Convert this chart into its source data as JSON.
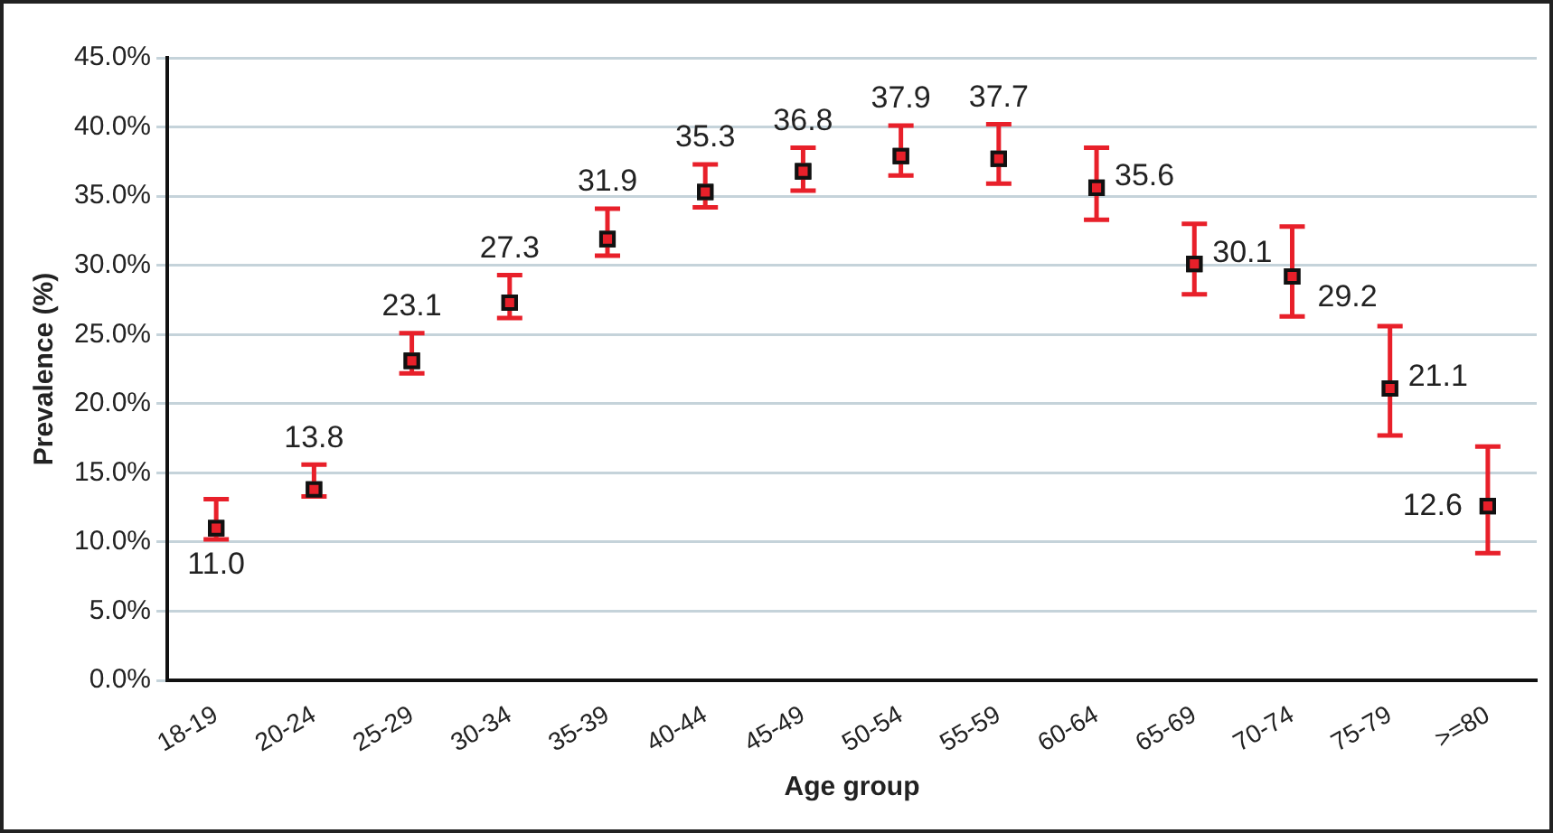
{
  "chart_data": {
    "type": "scatter",
    "xlabel": "Age group",
    "ylabel": "Prevalence (%)",
    "categories": [
      "18-19",
      "20-24",
      "25-29",
      "30-34",
      "35-39",
      "40-44",
      "45-49",
      "50-54",
      "55-59",
      "60-64",
      "65-69",
      "70-74",
      "75-79",
      ">=80"
    ],
    "series": [
      {
        "color": "#e8202a",
        "values": [
          11.0,
          13.8,
          23.1,
          27.3,
          31.9,
          35.3,
          36.8,
          37.9,
          37.7,
          35.6,
          30.1,
          29.2,
          21.1,
          12.6
        ],
        "value_labels": [
          "11.0",
          "13.8",
          "23.1",
          "27.3",
          "31.9",
          "35.3",
          "36.8",
          "37.9",
          "37.7",
          "35.6",
          "30.1",
          "29.2",
          "21.1",
          "12.6"
        ],
        "errors": [
          [
            10.2,
            13.1
          ],
          [
            13.3,
            15.6
          ],
          [
            22.2,
            25.1
          ],
          [
            26.2,
            29.3
          ],
          [
            30.7,
            34.1
          ],
          [
            34.2,
            37.3
          ],
          [
            35.4,
            38.5
          ],
          [
            36.5,
            40.1
          ],
          [
            35.9,
            40.2
          ],
          [
            33.3,
            38.5
          ],
          [
            27.9,
            33.0
          ],
          [
            26.3,
            32.8
          ],
          [
            17.7,
            25.6
          ],
          [
            9.2,
            16.9
          ]
        ]
      }
    ],
    "ylim": [
      0,
      45
    ],
    "yticks": [
      {
        "value": 0,
        "label": "0.0%"
      },
      {
        "value": 5,
        "label": "5.0%"
      },
      {
        "value": 10,
        "label": "10.0%"
      },
      {
        "value": 15,
        "label": "15.0%"
      },
      {
        "value": 20,
        "label": "20.0%"
      },
      {
        "value": 25,
        "label": "25.0%"
      },
      {
        "value": 30,
        "label": "30.0%"
      },
      {
        "value": 35,
        "label": "35.0%"
      },
      {
        "value": 40,
        "label": "40.0%"
      },
      {
        "value": 45,
        "label": "45.0%"
      }
    ],
    "grid": "y",
    "marker": "square",
    "legend": false
  }
}
